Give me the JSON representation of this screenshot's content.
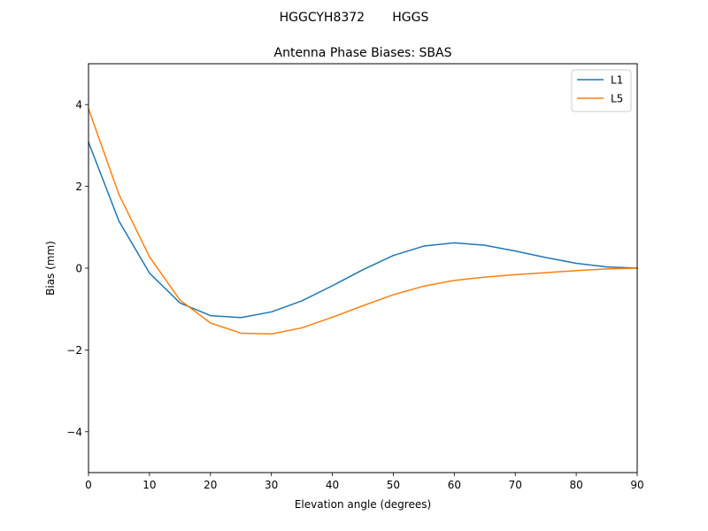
{
  "figure": {
    "suptitle": "HGGCYH8372       HGGS"
  },
  "chart_data": {
    "type": "line",
    "title": "Antenna Phase Biases: SBAS",
    "xlabel": "Elevation angle (degrees)",
    "ylabel": "Bias (mm)",
    "xlim": [
      0,
      90
    ],
    "ylim": [
      -5,
      5
    ],
    "xticks": [
      0,
      10,
      20,
      30,
      40,
      50,
      60,
      70,
      80,
      90
    ],
    "yticks": [
      -4,
      -2,
      0,
      2,
      4
    ],
    "ytick_labels": [
      "−4",
      "−2",
      "0",
      "2",
      "4"
    ],
    "grid": false,
    "legend_position": "upper right",
    "x": [
      0,
      5,
      10,
      15,
      20,
      25,
      30,
      35,
      40,
      45,
      50,
      55,
      60,
      65,
      70,
      75,
      80,
      85,
      90
    ],
    "series": [
      {
        "name": "L1",
        "color": "#1f77b4",
        "values": [
          3.08,
          1.15,
          -0.12,
          -0.85,
          -1.16,
          -1.21,
          -1.07,
          -0.8,
          -0.43,
          -0.04,
          0.31,
          0.54,
          0.62,
          0.56,
          0.42,
          0.26,
          0.12,
          0.03,
          0.0
        ]
      },
      {
        "name": "L5",
        "color": "#ff7f0e",
        "values": [
          3.9,
          1.8,
          0.28,
          -0.78,
          -1.34,
          -1.59,
          -1.61,
          -1.46,
          -1.2,
          -0.92,
          -0.65,
          -0.44,
          -0.3,
          -0.22,
          -0.16,
          -0.11,
          -0.06,
          -0.02,
          0.0
        ]
      }
    ]
  }
}
